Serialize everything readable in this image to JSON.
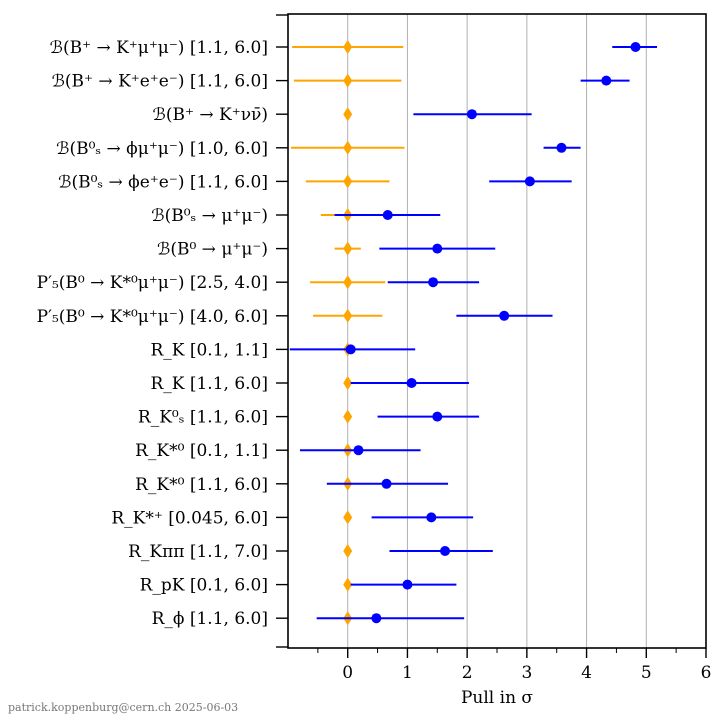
{
  "chart_data": {
    "type": "scatter",
    "xlabel": "Pull in σ",
    "xlim": [
      -1.0,
      6.0
    ],
    "xticks": [
      "0",
      "1",
      "2",
      "3",
      "4",
      "5",
      "6"
    ],
    "grid": "vertical",
    "footer": "patrick.koppenburg@cern.ch  2025-06-03",
    "colors": {
      "series_a": "#ffa500",
      "series_b": "#0000ff"
    },
    "rows": [
      {
        "label": "ℬ(B⁺ → K⁺μ⁺μ⁻) [1.1, 6.0]",
        "a": {
          "x": 0,
          "err": 0.93
        },
        "b": {
          "x": 4.82,
          "lo": 4.43,
          "hi": 5.18
        }
      },
      {
        "label": "ℬ(B⁺ → K⁺e⁺e⁻) [1.1, 6.0]",
        "a": {
          "x": 0,
          "err": 0.9
        },
        "b": {
          "x": 4.33,
          "lo": 3.9,
          "hi": 4.72
        }
      },
      {
        "label": "ℬ(B⁺ → K⁺νν̄)",
        "a": {
          "x": 0,
          "err": 0.0
        },
        "b": {
          "x": 2.08,
          "lo": 1.1,
          "hi": 3.08
        }
      },
      {
        "label": "ℬ(B⁰ₛ → ϕμ⁺μ⁻) [1.0, 6.0]",
        "a": {
          "x": 0,
          "err": 0.95
        },
        "b": {
          "x": 3.58,
          "lo": 3.28,
          "hi": 3.9
        }
      },
      {
        "label": "ℬ(B⁰ₛ → ϕe⁺e⁻) [1.1, 6.0]",
        "a": {
          "x": 0,
          "err": 0.7
        },
        "b": {
          "x": 3.05,
          "lo": 2.37,
          "hi": 3.75
        }
      },
      {
        "label": "ℬ(B⁰ₛ → μ⁺μ⁻)",
        "a": {
          "x": 0,
          "err": 0.45
        },
        "b": {
          "x": 0.67,
          "lo": -0.22,
          "hi": 1.55
        }
      },
      {
        "label": "ℬ(B⁰ → μ⁺μ⁻)",
        "a": {
          "x": 0,
          "err": 0.22
        },
        "b": {
          "x": 1.5,
          "lo": 0.53,
          "hi": 2.47
        }
      },
      {
        "label": "P′₅(B⁰ → K*⁰μ⁺μ⁻) [2.5, 4.0]",
        "a": {
          "x": 0,
          "err": 0.63
        },
        "b": {
          "x": 1.43,
          "lo": 0.67,
          "hi": 2.2
        }
      },
      {
        "label": "P′₅(B⁰ → K*⁰μ⁺μ⁻) [4.0, 6.0]",
        "a": {
          "x": 0,
          "err": 0.58
        },
        "b": {
          "x": 2.62,
          "lo": 1.82,
          "hi": 3.43
        }
      },
      {
        "label": "R_K [0.1, 1.1]",
        "a": {
          "x": 0,
          "err": 0.0
        },
        "b": {
          "x": 0.05,
          "lo": -0.97,
          "hi": 1.13
        }
      },
      {
        "label": "R_K [1.1, 6.0]",
        "a": {
          "x": 0,
          "err": 0.0
        },
        "b": {
          "x": 1.07,
          "lo": 0.05,
          "hi": 2.03
        }
      },
      {
        "label": "R_K⁰ₛ [1.1, 6.0]",
        "a": {
          "x": 0,
          "err": 0.0
        },
        "b": {
          "x": 1.5,
          "lo": 0.5,
          "hi": 2.2
        }
      },
      {
        "label": "R_K*⁰ [0.1, 1.1]",
        "a": {
          "x": 0,
          "err": 0.0
        },
        "b": {
          "x": 0.18,
          "lo": -0.8,
          "hi": 1.22
        }
      },
      {
        "label": "R_K*⁰ [1.1, 6.0]",
        "a": {
          "x": 0,
          "err": 0.0
        },
        "b": {
          "x": 0.65,
          "lo": -0.35,
          "hi": 1.68
        }
      },
      {
        "label": "R_K*⁺ [0.045, 6.0]",
        "a": {
          "x": 0,
          "err": 0.0
        },
        "b": {
          "x": 1.4,
          "lo": 0.4,
          "hi": 2.1
        }
      },
      {
        "label": "R_Kππ [1.1, 7.0]",
        "a": {
          "x": 0,
          "err": 0.0
        },
        "b": {
          "x": 1.63,
          "lo": 0.7,
          "hi": 2.43
        }
      },
      {
        "label": "R_pK [0.1, 6.0]",
        "a": {
          "x": 0,
          "err": 0.0
        },
        "b": {
          "x": 1.0,
          "lo": 0.05,
          "hi": 1.82
        }
      },
      {
        "label": "R_ϕ [1.1, 6.0]",
        "a": {
          "x": 0,
          "err": 0.0
        },
        "b": {
          "x": 0.48,
          "lo": -0.52,
          "hi": 1.95
        }
      }
    ]
  }
}
